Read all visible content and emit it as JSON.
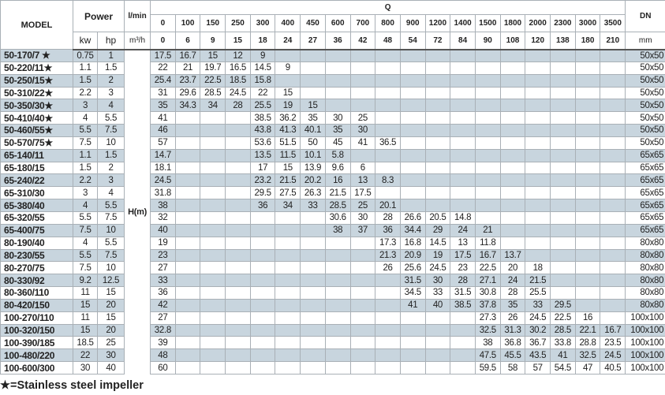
{
  "header": {
    "model": "MODEL",
    "power": "Power",
    "kw": "kw",
    "hp": "hp",
    "flow_unit_lpm": "l/min",
    "flow_unit_m3h": "m³/h",
    "q_label": "Q",
    "dn": "DN",
    "dn_unit": "mm",
    "head_label": "H(m)",
    "q_lpm": [
      "0",
      "100",
      "150",
      "250",
      "300",
      "400",
      "450",
      "600",
      "700",
      "800",
      "900",
      "1200",
      "1400",
      "1500",
      "1800",
      "2000",
      "2300",
      "3000",
      "3500"
    ],
    "q_m3h": [
      "0",
      "6",
      "9",
      "15",
      "18",
      "24",
      "27",
      "36",
      "42",
      "48",
      "54",
      "72",
      "84",
      "90",
      "108",
      "120",
      "138",
      "180",
      "210"
    ]
  },
  "rows": [
    {
      "model": "50-170/7 ★",
      "kw": "0.75",
      "hp": "1",
      "h": [
        "17.5",
        "16.7",
        "15",
        "12",
        "9",
        "",
        "",
        "",
        "",
        "",
        "",
        "",
        "",
        "",
        "",
        "",
        "",
        "",
        ""
      ],
      "dn": "50x50"
    },
    {
      "model": "50-220/11★",
      "kw": "1.1",
      "hp": "1.5",
      "h": [
        "22",
        "21",
        "19.7",
        "16.5",
        "14.5",
        "9",
        "",
        "",
        "",
        "",
        "",
        "",
        "",
        "",
        "",
        "",
        "",
        "",
        ""
      ],
      "dn": "50x50"
    },
    {
      "model": "50-250/15★",
      "kw": "1.5",
      "hp": "2",
      "h": [
        "25.4",
        "23.7",
        "22.5",
        "18.5",
        "15.8",
        "",
        "",
        "",
        "",
        "",
        "",
        "",
        "",
        "",
        "",
        "",
        "",
        "",
        ""
      ],
      "dn": "50x50"
    },
    {
      "model": "50-310/22★",
      "kw": "2.2",
      "hp": "3",
      "h": [
        "31",
        "29.6",
        "28.5",
        "24.5",
        "22",
        "15",
        "",
        "",
        "",
        "",
        "",
        "",
        "",
        "",
        "",
        "",
        "",
        "",
        ""
      ],
      "dn": "50x50"
    },
    {
      "model": "50-350/30★",
      "kw": "3",
      "hp": "4",
      "h": [
        "35",
        "34.3",
        "34",
        "28",
        "25.5",
        "19",
        "15",
        "",
        "",
        "",
        "",
        "",
        "",
        "",
        "",
        "",
        "",
        "",
        ""
      ],
      "dn": "50x50"
    },
    {
      "model": "50-410/40★",
      "kw": "4",
      "hp": "5.5",
      "h": [
        "41",
        "",
        "",
        "",
        "38.5",
        "36.2",
        "35",
        "30",
        "25",
        "",
        "",
        "",
        "",
        "",
        "",
        "",
        "",
        "",
        ""
      ],
      "dn": "50x50"
    },
    {
      "model": "50-460/55★",
      "kw": "5.5",
      "hp": "7.5",
      "h": [
        "46",
        "",
        "",
        "",
        "43.8",
        "41.3",
        "40.1",
        "35",
        "30",
        "",
        "",
        "",
        "",
        "",
        "",
        "",
        "",
        "",
        ""
      ],
      "dn": "50x50"
    },
    {
      "model": "50-570/75★",
      "kw": "7.5",
      "hp": "10",
      "h": [
        "57",
        "",
        "",
        "",
        "53.6",
        "51.5",
        "50",
        "45",
        "41",
        "36.5",
        "",
        "",
        "",
        "",
        "",
        "",
        "",
        "",
        ""
      ],
      "dn": "50x50"
    },
    {
      "model": "65-140/11",
      "kw": "1.1",
      "hp": "1.5",
      "h": [
        "14.7",
        "",
        "",
        "",
        "13.5",
        "11.5",
        "10.1",
        "5.8",
        "",
        "",
        "",
        "",
        "",
        "",
        "",
        "",
        "",
        "",
        ""
      ],
      "dn": "65x65"
    },
    {
      "model": "65-180/15",
      "kw": "1.5",
      "hp": "2",
      "h": [
        "18.1",
        "",
        "",
        "",
        "17",
        "15",
        "13.9",
        "9.6",
        "6",
        "",
        "",
        "",
        "",
        "",
        "",
        "",
        "",
        "",
        ""
      ],
      "dn": "65x65"
    },
    {
      "model": "65-240/22",
      "kw": "2.2",
      "hp": "3",
      "h": [
        "24.5",
        "",
        "",
        "",
        "23.2",
        "21.5",
        "20.2",
        "16",
        "13",
        "8.3",
        "",
        "",
        "",
        "",
        "",
        "",
        "",
        "",
        ""
      ],
      "dn": "65x65"
    },
    {
      "model": "65-310/30",
      "kw": "3",
      "hp": "4",
      "h": [
        "31.8",
        "",
        "",
        "",
        "29.5",
        "27.5",
        "26.3",
        "21.5",
        "17.5",
        "",
        "",
        "",
        "",
        "",
        "",
        "",
        "",
        "",
        ""
      ],
      "dn": "65x65"
    },
    {
      "model": "65-380/40",
      "kw": "4",
      "hp": "5.5",
      "h": [
        "38",
        "",
        "",
        "",
        "36",
        "34",
        "33",
        "28.5",
        "25",
        "20.1",
        "",
        "",
        "",
        "",
        "",
        "",
        "",
        "",
        ""
      ],
      "dn": "65x65"
    },
    {
      "model": "65-320/55",
      "kw": "5.5",
      "hp": "7.5",
      "h": [
        "32",
        "",
        "",
        "",
        "",
        "",
        "",
        "30.6",
        "30",
        "28",
        "26.6",
        "20.5",
        "14.8",
        "",
        "",
        "",
        "",
        "",
        ""
      ],
      "dn": "65x65"
    },
    {
      "model": "65-400/75",
      "kw": "7.5",
      "hp": "10",
      "h": [
        "40",
        "",
        "",
        "",
        "",
        "",
        "",
        "38",
        "37",
        "36",
        "34.4",
        "29",
        "24",
        "21",
        "",
        "",
        "",
        "",
        ""
      ],
      "dn": "65x65"
    },
    {
      "model": "80-190/40",
      "kw": "4",
      "hp": "5.5",
      "h": [
        "19",
        "",
        "",
        "",
        "",
        "",
        "",
        "",
        "",
        "17.3",
        "16.8",
        "14.5",
        "13",
        "11.8",
        "",
        "",
        "",
        "",
        ""
      ],
      "dn": "80x80"
    },
    {
      "model": "80-230/55",
      "kw": "5.5",
      "hp": "7.5",
      "h": [
        "23",
        "",
        "",
        "",
        "",
        "",
        "",
        "",
        "",
        "21.3",
        "20.9",
        "19",
        "17.5",
        "16.7",
        "13.7",
        "",
        "",
        "",
        ""
      ],
      "dn": "80x80"
    },
    {
      "model": "80-270/75",
      "kw": "7.5",
      "hp": "10",
      "h": [
        "27",
        "",
        "",
        "",
        "",
        "",
        "",
        "",
        "",
        "26",
        "25.6",
        "24.5",
        "23",
        "22.5",
        "20",
        "18",
        "",
        "",
        ""
      ],
      "dn": "80x80"
    },
    {
      "model": "80-330/92",
      "kw": "9.2",
      "hp": "12.5",
      "h": [
        "33",
        "",
        "",
        "",
        "",
        "",
        "",
        "",
        "",
        "",
        "31.5",
        "30",
        "28",
        "27.1",
        "24",
        "21.5",
        "",
        "",
        ""
      ],
      "dn": "80x80"
    },
    {
      "model": "80-360/110",
      "kw": "11",
      "hp": "15",
      "h": [
        "36",
        "",
        "",
        "",
        "",
        "",
        "",
        "",
        "",
        "",
        "34.5",
        "33",
        "31.5",
        "30.8",
        "28",
        "25.5",
        "",
        "",
        ""
      ],
      "dn": "80x80"
    },
    {
      "model": "80-420/150",
      "kw": "15",
      "hp": "20",
      "h": [
        "42",
        "",
        "",
        "",
        "",
        "",
        "",
        "",
        "",
        "",
        "41",
        "40",
        "38.5",
        "37.8",
        "35",
        "33",
        "29.5",
        "",
        ""
      ],
      "dn": "80x80"
    },
    {
      "model": "100-270/110",
      "kw": "11",
      "hp": "15",
      "h": [
        "27",
        "",
        "",
        "",
        "",
        "",
        "",
        "",
        "",
        "",
        "",
        "",
        "",
        "27.3",
        "26",
        "24.5",
        "22.5",
        "16",
        ""
      ],
      "dn": "100x100"
    },
    {
      "model": "100-320/150",
      "kw": "15",
      "hp": "20",
      "h": [
        "32.8",
        "",
        "",
        "",
        "",
        "",
        "",
        "",
        "",
        "",
        "",
        "",
        "",
        "32.5",
        "31.3",
        "30.2",
        "28.5",
        "22.1",
        "16.7"
      ],
      "dn": "100x100"
    },
    {
      "model": "100-390/185",
      "kw": "18.5",
      "hp": "25",
      "h": [
        "39",
        "",
        "",
        "",
        "",
        "",
        "",
        "",
        "",
        "",
        "",
        "",
        "",
        "38",
        "36.8",
        "36.7",
        "33.8",
        "28.8",
        "23.5"
      ],
      "dn": "100x100"
    },
    {
      "model": "100-480/220",
      "kw": "22",
      "hp": "30",
      "h": [
        "48",
        "",
        "",
        "",
        "",
        "",
        "",
        "",
        "",
        "",
        "",
        "",
        "",
        "47.5",
        "45.5",
        "43.5",
        "41",
        "32.5",
        "24.5"
      ],
      "dn": "100x100"
    },
    {
      "model": "100-600/300",
      "kw": "30",
      "hp": "40",
      "h": [
        "60",
        "",
        "",
        "",
        "",
        "",
        "",
        "",
        "",
        "",
        "",
        "",
        "",
        "59.5",
        "58",
        "57",
        "54.5",
        "47",
        "40.5"
      ],
      "dn": "100x100"
    }
  ],
  "footer": {
    "note": "★=Stainless steel impeller"
  },
  "colors": {
    "row_shade": "#c8d5de",
    "grid": "#a9b0b6"
  }
}
